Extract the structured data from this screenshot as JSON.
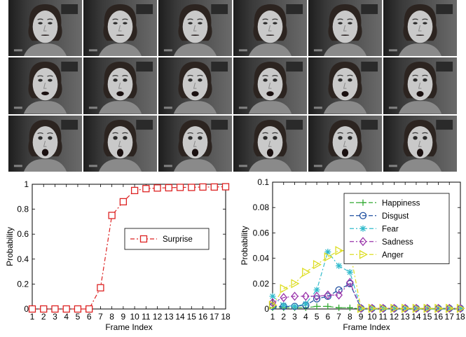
{
  "frames": {
    "rows": 3,
    "cols": 6,
    "description_icon": "face-frame-thumbnail",
    "mouth_open": [
      0,
      0,
      0,
      0,
      0,
      0,
      0.35,
      0.5,
      0.55,
      0.5,
      0.6,
      0.6,
      0.8,
      0.9,
      0.85,
      0.9,
      0.9,
      0.9
    ]
  },
  "chart_data": [
    {
      "type": "line",
      "xlabel": "Frame Index",
      "ylabel": "Probability",
      "xlim": [
        1,
        18
      ],
      "ylim": [
        0,
        1
      ],
      "xticks": [
        1,
        2,
        3,
        4,
        5,
        6,
        7,
        8,
        9,
        10,
        11,
        12,
        13,
        14,
        15,
        16,
        17,
        18
      ],
      "yticks": [
        0,
        0.2,
        0.4,
        0.6,
        0.8,
        1
      ],
      "ytick_labels": [
        "0",
        "0.2",
        "0.4",
        "0.6",
        "0.8",
        "1"
      ],
      "legend_position": "center-right",
      "x": [
        1,
        2,
        3,
        4,
        5,
        6,
        7,
        8,
        9,
        10,
        11,
        12,
        13,
        14,
        15,
        16,
        17,
        18
      ],
      "series": [
        {
          "name": "Surprise",
          "color": "#dd2222",
          "marker": "square",
          "dash": "6,3,2,3",
          "values": [
            0,
            0,
            0,
            0,
            0,
            0,
            0.17,
            0.75,
            0.86,
            0.95,
            0.965,
            0.97,
            0.972,
            0.975,
            0.975,
            0.978,
            0.978,
            0.98
          ]
        }
      ]
    },
    {
      "type": "line",
      "xlabel": "Frame Index",
      "ylabel": "Probability",
      "xlim": [
        1,
        18
      ],
      "ylim": [
        0,
        0.1
      ],
      "xticks": [
        1,
        2,
        3,
        4,
        5,
        6,
        7,
        8,
        9,
        10,
        11,
        12,
        13,
        14,
        15,
        16,
        17,
        18
      ],
      "yticks": [
        0,
        0.02,
        0.04,
        0.06,
        0.08,
        0.1
      ],
      "ytick_labels": [
        "0",
        "0.02",
        "0.04",
        "0.06",
        "0.08",
        "0.1"
      ],
      "legend_position": "top-right",
      "x": [
        1,
        2,
        3,
        4,
        5,
        6,
        7,
        8,
        9,
        10,
        11,
        12,
        13,
        14,
        15,
        16,
        17,
        18
      ],
      "series": [
        {
          "name": "Happiness",
          "color": "#33aa33",
          "marker": "plus",
          "dash": "6,3",
          "values": [
            0.001,
            0.001,
            0.001,
            0.001,
            0.002,
            0.002,
            0.001,
            0.001,
            0,
            0,
            0,
            0,
            0,
            0,
            0,
            0,
            0,
            0
          ]
        },
        {
          "name": "Disgust",
          "color": "#1f4fa0",
          "marker": "circle",
          "dash": "6,3",
          "values": [
            0.002,
            0.002,
            0.002,
            0.003,
            0.008,
            0.01,
            0.015,
            0.02,
            0.0005,
            0.0005,
            0.0005,
            0.0005,
            0.0005,
            0.0005,
            0.0005,
            0.0005,
            0.0005,
            0.0005
          ]
        },
        {
          "name": "Fear",
          "color": "#33bbcc",
          "marker": "asterisk",
          "dash": "6,3,2,3",
          "values": [
            0.01,
            0.003,
            0.002,
            0.004,
            0.015,
            0.045,
            0.034,
            0.029,
            0.0005,
            0.0005,
            0.0005,
            0.0005,
            0.0005,
            0.0005,
            0.0005,
            0.0005,
            0.0005,
            0.0005
          ]
        },
        {
          "name": "Sadness",
          "color": "#9933aa",
          "marker": "diamond",
          "dash": "6,3,2,3",
          "values": [
            0.005,
            0.009,
            0.01,
            0.01,
            0.01,
            0.011,
            0.011,
            0.021,
            0.0005,
            0.0005,
            0.0005,
            0.0005,
            0.0005,
            0.0005,
            0.0005,
            0.0005,
            0.0005,
            0.0005
          ]
        },
        {
          "name": "Anger",
          "color": "#dddd22",
          "marker": "triangle-right",
          "dash": "6,3,2,3",
          "values": [
            0.003,
            0.016,
            0.02,
            0.029,
            0.035,
            0.041,
            0.046,
            0.046,
            0.0005,
            0.0005,
            0.0005,
            0.0005,
            0.0005,
            0.0005,
            0.0005,
            0.0005,
            0.0005,
            0.0005
          ]
        }
      ]
    }
  ]
}
